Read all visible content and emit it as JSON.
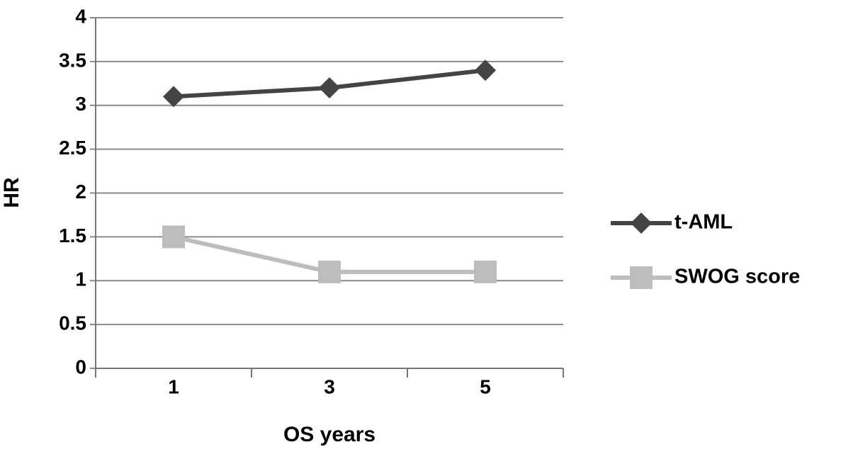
{
  "chart_data": {
    "type": "line",
    "x_label": "OS years",
    "y_label": "HR",
    "categories": [
      "1",
      "3",
      "5"
    ],
    "series": [
      {
        "name": "t-AML",
        "color": "#444444",
        "marker": "diamond",
        "values": [
          3.1,
          3.2,
          3.4
        ]
      },
      {
        "name": "SWOG score",
        "color": "#bdbdbd",
        "marker": "square",
        "values": [
          1.5,
          1.1,
          1.1
        ]
      }
    ],
    "ylim": [
      0,
      4
    ],
    "yticks": [
      0,
      0.5,
      1,
      1.5,
      2,
      2.5,
      3,
      3.5,
      4
    ],
    "grid": true,
    "legend": "right"
  }
}
